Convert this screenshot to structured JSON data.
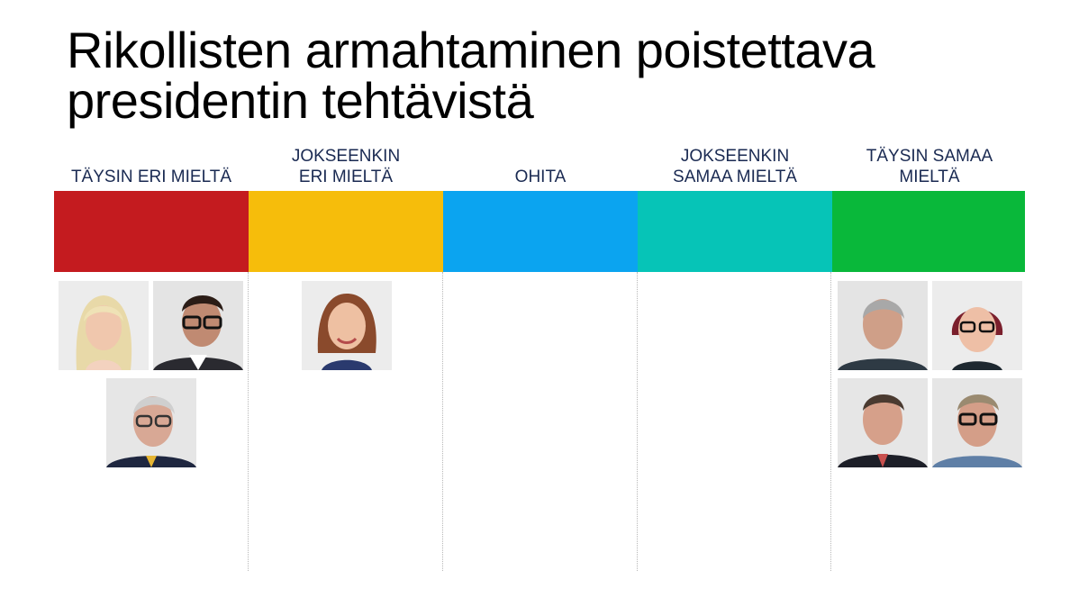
{
  "title": {
    "line1": "Rikollisten armahtaminen poistettava",
    "line2": "presidentin tehtävistä"
  },
  "columns": [
    {
      "label": "TÄYSIN ERI MIELTÄ",
      "color": "#c41b1f"
    },
    {
      "label": "JOKSEENKIN\nERI  MIELTÄ",
      "color": "#f6bd0b"
    },
    {
      "label": "OHITA",
      "color": "#0ba4f0"
    },
    {
      "label": "JOKSEENKIN\nSAMAA MIELTÄ",
      "color": "#06c4b7"
    },
    {
      "label": "TÄYSIN SAMAA\nMIELTÄ",
      "color": "#09b83a"
    }
  ],
  "portraits": {
    "col1": [
      "blonde-woman-portrait",
      "man-with-glasses-portrait",
      "older-man-with-glasses-portrait"
    ],
    "col2": [
      "smiling-woman-portrait"
    ],
    "col5": [
      "grey-haired-man-portrait",
      "woman-with-glasses-portrait",
      "man-in-suit-portrait",
      "man-with-glasses-portrait-2"
    ]
  }
}
